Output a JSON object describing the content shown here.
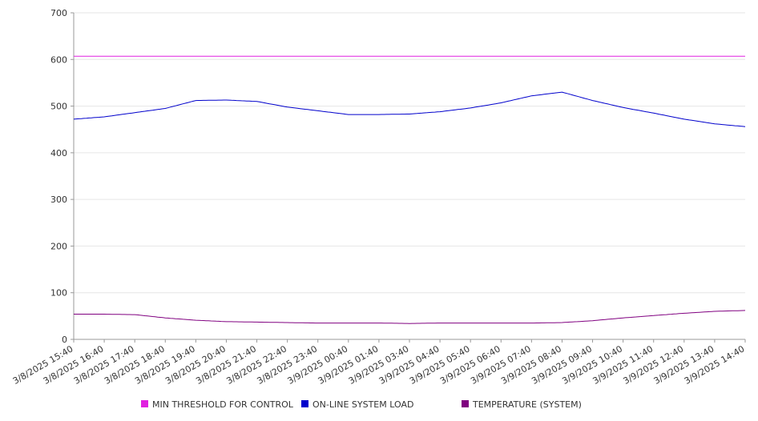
{
  "chart_data": {
    "type": "line",
    "title": "",
    "xlabel": "",
    "ylabel": "",
    "ylim": [
      0,
      700
    ],
    "yticks": [
      0,
      100,
      200,
      300,
      400,
      500,
      600,
      700
    ],
    "grid": true,
    "legend_position": "bottom",
    "x_tick_labels": [
      "3/8/2025 15:40",
      "3/8/2025 16:40",
      "3/8/2025 17:40",
      "3/8/2025 18:40",
      "3/8/2025 19:40",
      "3/8/2025 20:40",
      "3/8/2025 21:40",
      "3/8/2025 22:40",
      "3/8/2025 23:40",
      "3/9/2025 00:40",
      "3/9/2025 01:40",
      "3/9/2025 03:40",
      "3/9/2025 04:40",
      "3/9/2025 05:40",
      "3/9/2025 06:40",
      "3/9/2025 07:40",
      "3/9/2025 08:40",
      "3/9/2025 09:40",
      "3/9/2025 10:40",
      "3/9/2025 11:40",
      "3/9/2025 12:40",
      "3/9/2025 13:40",
      "3/9/2025 14:40"
    ],
    "series": [
      {
        "name": "MIN THRESHOLD FOR CONTROL",
        "color": "#e020e0",
        "values": [
          607,
          607,
          607,
          607,
          607,
          607,
          607,
          607,
          607,
          607,
          607,
          607,
          607,
          607,
          607,
          607,
          607,
          607,
          607,
          607,
          607,
          607,
          607
        ]
      },
      {
        "name": "ON-LINE SYSTEM LOAD",
        "color": "#0000cc",
        "values": [
          472,
          477,
          486,
          495,
          512,
          513,
          510,
          498,
          490,
          482,
          482,
          483,
          488,
          496,
          507,
          522,
          530,
          512,
          497,
          485,
          472,
          462,
          456
        ]
      },
      {
        "name": "TEMPERATURE (SYSTEM)",
        "color": "#800080",
        "values": [
          54,
          54,
          53,
          46,
          41,
          38,
          37,
          36,
          35,
          35,
          35,
          34,
          35,
          35,
          35,
          35,
          36,
          40,
          46,
          51,
          56,
          60,
          62
        ]
      }
    ]
  }
}
